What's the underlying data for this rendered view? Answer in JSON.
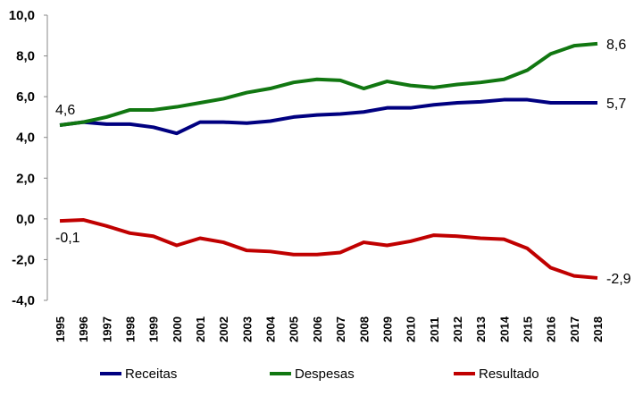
{
  "chart_data": {
    "type": "line",
    "x": [
      1995,
      1996,
      1997,
      1998,
      1999,
      2000,
      2001,
      2002,
      2003,
      2004,
      2005,
      2006,
      2007,
      2008,
      2009,
      2010,
      2011,
      2012,
      2013,
      2014,
      2015,
      2016,
      2017,
      2018
    ],
    "ylim": [
      -4,
      10
    ],
    "yticks": [
      "-4,0",
      "-2,0",
      "0,0",
      "2,0",
      "4,0",
      "6,0",
      "8,0",
      "10,0"
    ],
    "ytick_values": [
      -4,
      -2,
      0,
      2,
      4,
      6,
      8,
      10
    ],
    "grid": false,
    "legend": "bottom",
    "series": [
      {
        "name": "Receitas",
        "color": "#000080",
        "values": [
          4.6,
          4.75,
          4.65,
          4.65,
          4.5,
          4.2,
          4.75,
          4.75,
          4.7,
          4.8,
          5.0,
          5.1,
          5.15,
          5.25,
          5.45,
          5.45,
          5.6,
          5.7,
          5.75,
          5.85,
          5.85,
          5.7,
          5.7,
          5.7
        ]
      },
      {
        "name": "Despesas",
        "color": "#117711",
        "values": [
          4.6,
          4.75,
          5.0,
          5.35,
          5.35,
          5.5,
          5.7,
          5.9,
          6.2,
          6.4,
          6.7,
          6.85,
          6.8,
          6.4,
          6.75,
          6.55,
          6.45,
          6.6,
          6.7,
          6.85,
          7.3,
          8.1,
          8.5,
          8.6
        ]
      },
      {
        "name": "Resultado",
        "color": "#c00000",
        "values": [
          -0.1,
          -0.05,
          -0.35,
          -0.7,
          -0.85,
          -1.3,
          -0.95,
          -1.15,
          -1.55,
          -1.6,
          -1.75,
          -1.75,
          -1.65,
          -1.15,
          -1.3,
          -1.1,
          -0.8,
          -0.85,
          -0.95,
          -1.0,
          -1.45,
          -2.4,
          -2.8,
          -2.9
        ]
      }
    ],
    "annotations": [
      {
        "text": "4,6",
        "series": "Receitas",
        "x": 1995,
        "value": 4.6
      },
      {
        "text": "-0,1",
        "series": "Resultado",
        "x": 1995,
        "value": -0.1
      },
      {
        "text": "8,6",
        "series": "Despesas",
        "x": 2018,
        "value": 8.6
      },
      {
        "text": "5,7",
        "series": "Receitas",
        "x": 2018,
        "value": 5.7
      },
      {
        "text": "-2,9",
        "series": "Resultado",
        "x": 2018,
        "value": -2.9
      }
    ]
  }
}
